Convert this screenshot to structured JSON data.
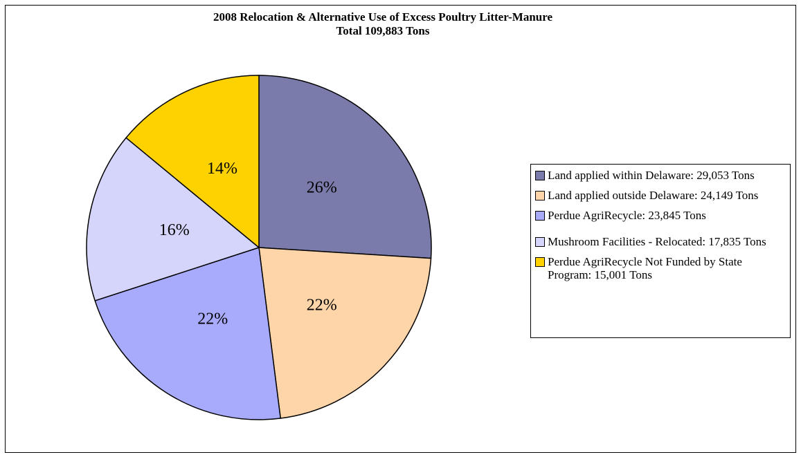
{
  "chart_data": {
    "type": "pie",
    "title": "2008 Relocation & Alternative Use of Excess Poultry Litter-Manure",
    "subtitle": "Total 109,883 Tons",
    "categories": [
      "Land applied within Delaware:  29,053 Tons",
      "Land applied outside Delaware:  24,149 Tons",
      "Perdue AgriRecycle: 23,845 Tons",
      "Mushroom Facilities  - Relocated: 17,835 Tons",
      "Perdue AgriRecycle Not Funded by State Program:  15,001 Tons"
    ],
    "values": [
      26,
      22,
      22,
      16,
      14
    ],
    "value_labels": [
      "26%",
      "22%",
      "22%",
      "16%",
      "14%"
    ],
    "colors": [
      "#7b7bab",
      "#fdd5a8",
      "#a8aafc",
      "#d5d5fb",
      "#fdd200"
    ],
    "legend": "right"
  }
}
